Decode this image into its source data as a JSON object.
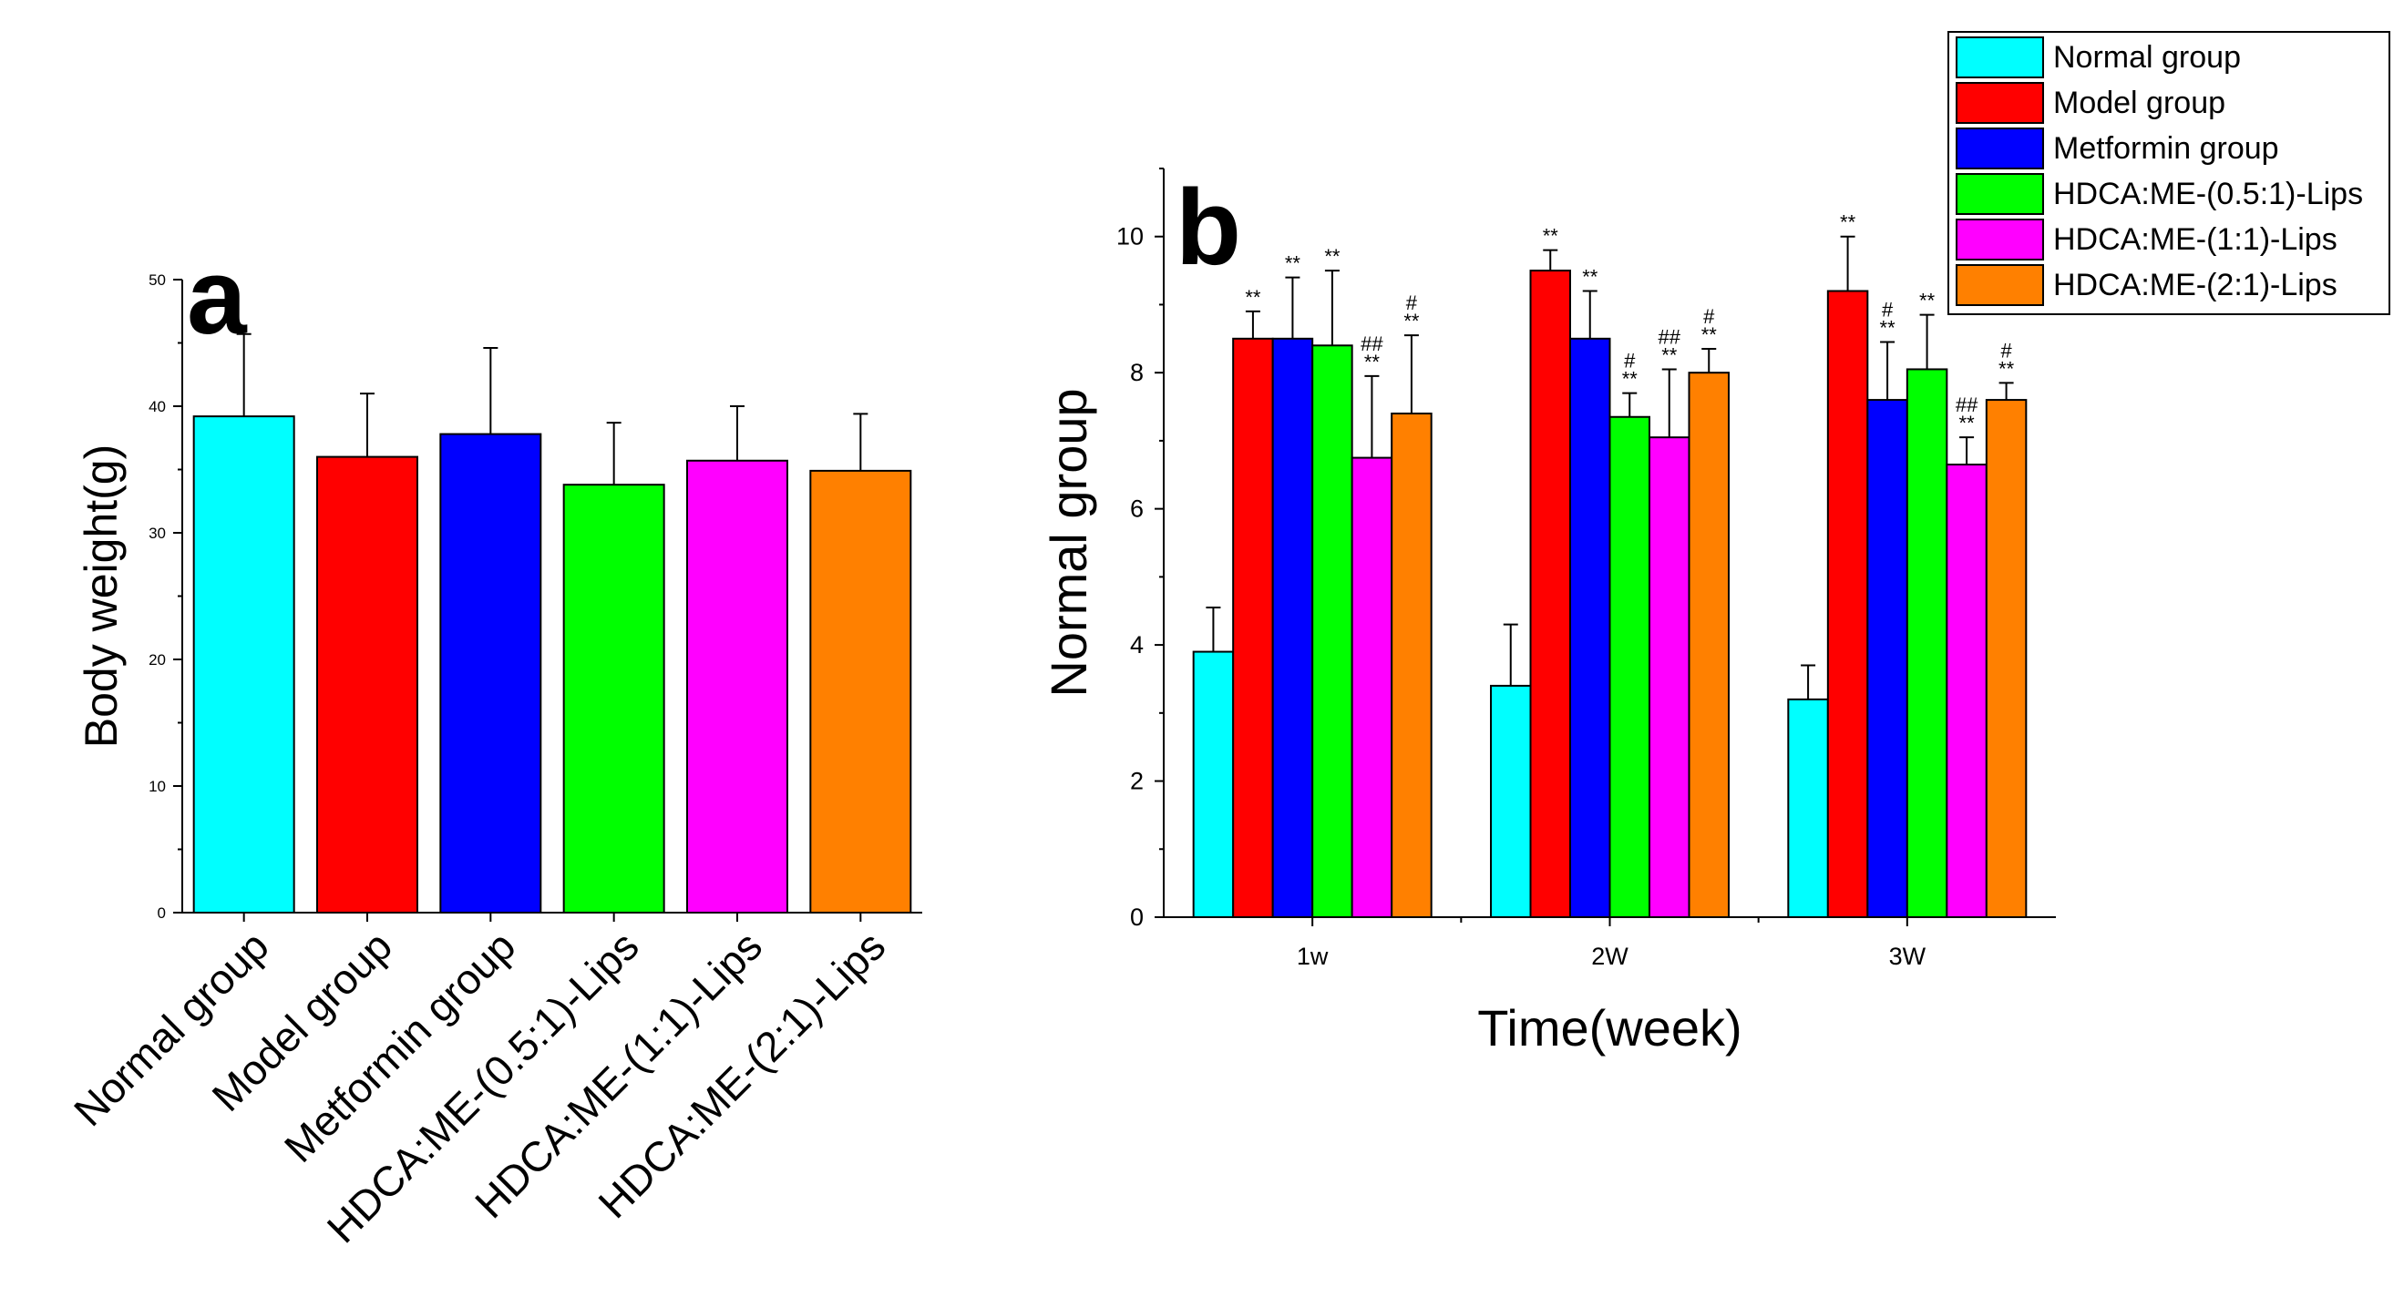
{
  "chart_data": [
    {
      "panel": "a",
      "type": "bar",
      "categories": [
        "Normal group",
        "Model group",
        "Metformin group",
        "HDCA:ME-(0.5:1)-Lips",
        "HDCA:ME-(1:1)-Lips",
        "HDCA:ME-(2:1)-Lips"
      ],
      "values": [
        39.2,
        36.0,
        37.8,
        33.8,
        35.7,
        34.9
      ],
      "errors": [
        6.5,
        5.0,
        6.8,
        4.9,
        4.3,
        4.5
      ],
      "colors": [
        "#00FFFF",
        "#FF0000",
        "#0000FF",
        "#00FF00",
        "#FF00FF",
        "#FF8000"
      ],
      "ylabel": "Body weight(g)",
      "xlabel": "",
      "ylim": [
        0,
        50
      ],
      "yticks": [
        "0",
        "10",
        "20",
        "30",
        "40",
        "50"
      ]
    },
    {
      "panel": "b",
      "type": "bar",
      "categories": [
        "1w",
        "2W",
        "3W"
      ],
      "series": [
        {
          "name": "Normal group",
          "color": "#00FFFF",
          "values": [
            3.9,
            3.4,
            3.2
          ],
          "errors": [
            0.65,
            0.9,
            0.5
          ],
          "sig": [
            "",
            "",
            ""
          ]
        },
        {
          "name": "Model group",
          "color": "#FF0000",
          "values": [
            8.5,
            9.5,
            9.2
          ],
          "errors": [
            0.4,
            0.3,
            0.8
          ],
          "sig": [
            "**",
            "**",
            "**"
          ]
        },
        {
          "name": "Metformin group",
          "color": "#0000FF",
          "values": [
            8.5,
            8.5,
            7.6
          ],
          "errors": [
            0.9,
            0.7,
            0.85
          ],
          "sig": [
            "**",
            "**",
            "#\n**"
          ]
        },
        {
          "name": "HDCA:ME-(0.5:1)-Lips",
          "color": "#00FF00",
          "values": [
            8.4,
            7.35,
            8.05
          ],
          "errors": [
            1.1,
            0.35,
            0.8
          ],
          "sig": [
            "**",
            "#\n**",
            "**"
          ]
        },
        {
          "name": "HDCA:ME-(1:1)-Lips",
          "color": "#FF00FF",
          "values": [
            6.75,
            7.05,
            6.65
          ],
          "errors": [
            1.2,
            1.0,
            0.4
          ],
          "sig": [
            "##\n**",
            "##\n**",
            "##\n**"
          ]
        },
        {
          "name": "HDCA:ME-(2:1)-Lips",
          "color": "#FF8000",
          "values": [
            7.4,
            8.0,
            7.6
          ],
          "errors": [
            1.15,
            0.35,
            0.25
          ],
          "sig": [
            "#\n**",
            "#\n**",
            "#\n**"
          ]
        }
      ],
      "ylabel": "Normal group",
      "xlabel": "Time(week)",
      "ylim": [
        0,
        11
      ],
      "yticks": [
        "0",
        "2",
        "4",
        "6",
        "8",
        "10"
      ],
      "legend_position": "top-right"
    }
  ]
}
